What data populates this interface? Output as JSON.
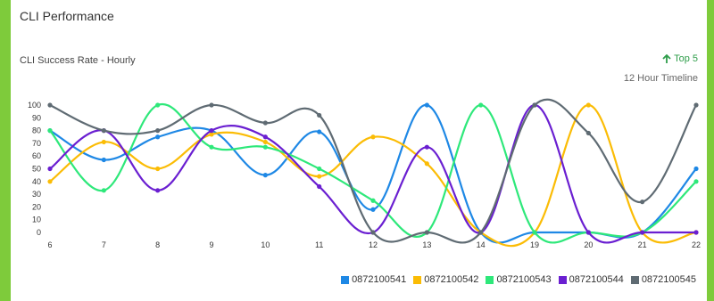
{
  "panel": {
    "title": "CLI Performance",
    "chart_title": "CLI Success Rate - Hourly",
    "top_link": "Top 5",
    "timeline_label": "12 Hour Timeline",
    "accent_color": "#2e9d4a",
    "frame_color": "#7ecb3b"
  },
  "chart_data": {
    "type": "line",
    "title": "CLI Success Rate - Hourly",
    "xlabel": "",
    "ylabel": "",
    "ylim": [
      0,
      100
    ],
    "yticks": [
      100,
      90,
      80,
      70,
      60,
      50,
      40,
      30,
      20,
      10,
      0
    ],
    "categories": [
      "6",
      "7",
      "8",
      "9",
      "10",
      "11",
      "12",
      "13",
      "14",
      "19",
      "20",
      "21",
      "22"
    ],
    "grid": false,
    "legend": "bottom-right",
    "series": [
      {
        "name": "0872100541",
        "color": "#1e88e5",
        "values": [
          80,
          57,
          75,
          80,
          45,
          79,
          18,
          100,
          0,
          0,
          0,
          0,
          50
        ]
      },
      {
        "name": "0872100542",
        "color": "#fbbc05",
        "values": [
          40,
          71,
          50,
          77,
          71,
          44,
          75,
          54,
          0,
          0,
          100,
          0,
          0
        ]
      },
      {
        "name": "0872100543",
        "color": "#2ee87a",
        "values": [
          80,
          33,
          100,
          67,
          67,
          50,
          25,
          0,
          100,
          0,
          0,
          0,
          40
        ]
      },
      {
        "name": "0872100544",
        "color": "#6a1fd1",
        "values": [
          50,
          80,
          33,
          80,
          75,
          36,
          0,
          67,
          0,
          100,
          0,
          0,
          0
        ]
      },
      {
        "name": "0872100545",
        "color": "#5f6b73",
        "values": [
          100,
          80,
          80,
          100,
          86,
          92,
          0,
          0,
          0,
          100,
          78,
          24,
          100
        ]
      }
    ]
  }
}
